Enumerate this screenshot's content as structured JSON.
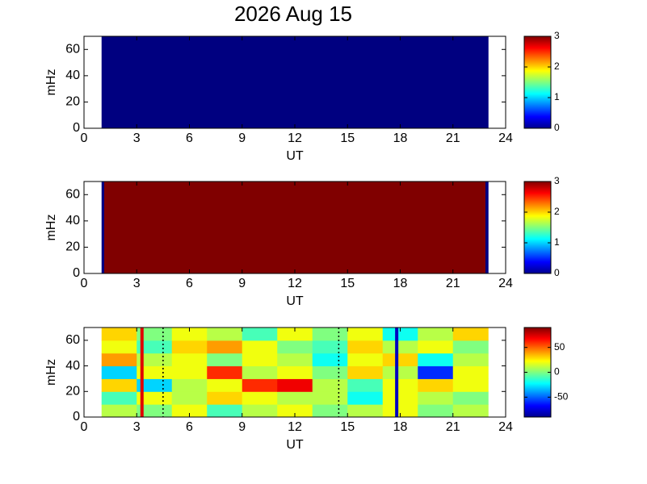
{
  "title": "2026 Aug 15",
  "chart_data": [
    {
      "type": "heatmap",
      "xlabel": "UT",
      "ylabel": "mHz",
      "xlim": [
        0,
        24
      ],
      "xticks": [
        0,
        3,
        6,
        9,
        12,
        15,
        18,
        21,
        24
      ],
      "ylim": [
        0,
        70
      ],
      "yticks": [
        0,
        20,
        40,
        60
      ],
      "xbins": [
        1,
        23
      ],
      "ybins": [
        0,
        70
      ],
      "values": [
        [
          0
        ]
      ],
      "clim": [
        0,
        3
      ],
      "cticks": [
        0,
        1,
        2,
        3
      ]
    },
    {
      "type": "heatmap",
      "xlabel": "UT",
      "ylabel": "mHz",
      "xlim": [
        0,
        24
      ],
      "xticks": [
        0,
        3,
        6,
        9,
        12,
        15,
        18,
        21,
        24
      ],
      "ylim": [
        0,
        70
      ],
      "yticks": [
        0,
        20,
        40,
        60
      ],
      "xbins": [
        1,
        1.15,
        22.85,
        23
      ],
      "ybins": [
        0,
        70
      ],
      "values": [
        [
          0,
          3,
          0
        ]
      ],
      "clim": [
        0,
        3
      ],
      "cticks": [
        0,
        1,
        2,
        3
      ]
    },
    {
      "type": "heatmap",
      "xlabel": "UT",
      "ylabel": "mHz",
      "xlim": [
        0,
        24
      ],
      "xticks": [
        0,
        3,
        6,
        9,
        12,
        15,
        18,
        21,
        24
      ],
      "ylim": [
        0,
        70
      ],
      "yticks": [
        0,
        20,
        40,
        60
      ],
      "xbins": [
        1,
        3,
        5,
        7,
        9,
        11,
        13,
        15,
        17,
        19,
        21,
        23
      ],
      "ybins": [
        0,
        10,
        20,
        30,
        40,
        50,
        60,
        70
      ],
      "values": [
        [
          10,
          0,
          20,
          -10,
          10,
          20,
          0,
          10,
          20,
          0,
          10
        ],
        [
          -10,
          20,
          10,
          30,
          20,
          10,
          10,
          -20,
          20,
          10,
          0
        ],
        [
          30,
          -30,
          10,
          20,
          60,
          70,
          10,
          -10,
          20,
          30,
          20
        ],
        [
          -30,
          20,
          20,
          60,
          10,
          20,
          0,
          30,
          10,
          -60,
          20
        ],
        [
          40,
          10,
          20,
          0,
          20,
          10,
          -20,
          20,
          30,
          -20,
          10
        ],
        [
          20,
          -10,
          30,
          40,
          20,
          0,
          -10,
          30,
          10,
          20,
          0
        ],
        [
          30,
          0,
          20,
          10,
          -10,
          20,
          0,
          20,
          -20,
          10,
          30
        ]
      ],
      "clim": [
        -90,
        90
      ],
      "cticks": [
        -50,
        0,
        50
      ],
      "lines": [
        {
          "x": 3.3,
          "color": "#e00000",
          "style": "solid"
        },
        {
          "x": 4.5,
          "color": "#000000",
          "style": "dotted"
        },
        {
          "x": 14.5,
          "color": "#000000",
          "style": "dotted"
        },
        {
          "x": 17.8,
          "color": "#0000c0",
          "style": "solid"
        }
      ]
    }
  ]
}
